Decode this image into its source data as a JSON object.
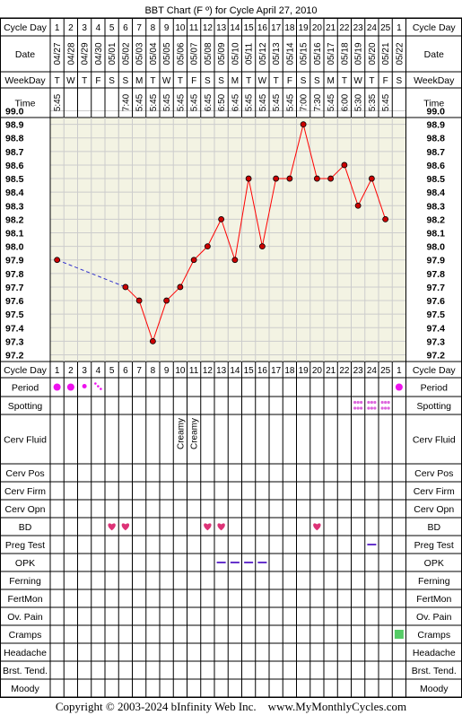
{
  "title": "BBT Chart (F º) for Cycle April 27, 2010",
  "copyright": "Copyright © 2003-2024 bInfinity Web Inc.    www.MyMonthlyCycles.com",
  "headers": {
    "cycle_day": "Cycle Day",
    "date": "Date",
    "weekday": "WeekDay",
    "time": "Time"
  },
  "cycle_days": [
    "1",
    "2",
    "3",
    "4",
    "5",
    "6",
    "7",
    "8",
    "9",
    "10",
    "11",
    "12",
    "13",
    "14",
    "15",
    "16",
    "17",
    "18",
    "19",
    "20",
    "21",
    "22",
    "23",
    "24",
    "25",
    "1"
  ],
  "dates": [
    "04/27",
    "04/28",
    "04/29",
    "04/30",
    "05/01",
    "05/02",
    "05/03",
    "05/04",
    "05/05",
    "05/06",
    "05/07",
    "05/08",
    "05/09",
    "05/10",
    "05/11",
    "05/12",
    "05/13",
    "05/14",
    "05/15",
    "05/16",
    "05/17",
    "05/18",
    "05/19",
    "05/20",
    "05/21",
    "05/22"
  ],
  "weekdays": [
    "T",
    "W",
    "T",
    "F",
    "S",
    "S",
    "M",
    "T",
    "W",
    "T",
    "F",
    "S",
    "S",
    "M",
    "T",
    "W",
    "T",
    "F",
    "S",
    "S",
    "M",
    "T",
    "W",
    "T",
    "F",
    "S"
  ],
  "times": [
    "5:45",
    "",
    "",
    "",
    "",
    "7:40",
    "5:45",
    "5:45",
    "5:45",
    "5:45",
    "5:45",
    "6:45",
    "6:50",
    "6:45",
    "5:45",
    "5:45",
    "5:45",
    "5:45",
    "7:00",
    "7:30",
    "5:45",
    "6:00",
    "5:30",
    "5:35",
    "5:45",
    ""
  ],
  "temp_labels": [
    "99.0",
    "98.9",
    "98.8",
    "98.7",
    "98.6",
    "98.5",
    "98.4",
    "98.3",
    "98.2",
    "98.1",
    "98.0",
    "97.9",
    "97.8",
    "97.7",
    "97.6",
    "97.5",
    "97.4",
    "97.3",
    "97.2"
  ],
  "chart_data": {
    "type": "line",
    "title": "BBT Chart (F º) for Cycle April 27, 2010",
    "xlabel": "Cycle Day",
    "ylabel": "",
    "ylim": [
      97.2,
      99.0
    ],
    "grid": true,
    "x": [
      1,
      2,
      3,
      4,
      5,
      6,
      7,
      8,
      9,
      10,
      11,
      12,
      13,
      14,
      15,
      16,
      17,
      18,
      19,
      20,
      21,
      22,
      23,
      24,
      25,
      26
    ],
    "temperatures": [
      97.9,
      null,
      null,
      null,
      null,
      97.7,
      97.6,
      97.3,
      97.6,
      97.7,
      97.9,
      98.0,
      98.2,
      97.9,
      98.5,
      98.0,
      98.5,
      98.5,
      98.9,
      98.5,
      98.5,
      98.6,
      98.3,
      98.5,
      98.2,
      null
    ],
    "colors": {
      "line": "#ff0000",
      "dash": "#3333cc",
      "marker": "#cc0000",
      "grid": "#cccccc",
      "plot_bg": "#f3f3e3"
    }
  },
  "rows": [
    {
      "label": "Period",
      "marks": [
        {
          "col": 0,
          "type": "dot-lg"
        },
        {
          "col": 1,
          "type": "dot-lg"
        },
        {
          "col": 2,
          "type": "dot-sm"
        },
        {
          "col": 3,
          "type": "dots-diag"
        },
        {
          "col": 25,
          "type": "dot-lg"
        }
      ]
    },
    {
      "label": "Spotting",
      "marks": [
        {
          "col": 22,
          "type": "spot"
        },
        {
          "col": 23,
          "type": "spot"
        },
        {
          "col": 24,
          "type": "spot"
        }
      ]
    },
    {
      "label": "Cerv Fluid",
      "marks": [
        {
          "col": 9,
          "type": "text",
          "text": "Creamy"
        },
        {
          "col": 10,
          "type": "text",
          "text": "Creamy"
        }
      ]
    },
    {
      "label": "Cerv Pos",
      "marks": []
    },
    {
      "label": "Cerv Firm",
      "marks": []
    },
    {
      "label": "Cerv Opn",
      "marks": []
    },
    {
      "label": "BD",
      "marks": [
        {
          "col": 4,
          "type": "heart"
        },
        {
          "col": 5,
          "type": "heart"
        },
        {
          "col": 11,
          "type": "heart"
        },
        {
          "col": 12,
          "type": "heart"
        },
        {
          "col": 19,
          "type": "heart"
        }
      ]
    },
    {
      "label": "Preg Test",
      "marks": [
        {
          "col": 23,
          "type": "dash"
        }
      ]
    },
    {
      "label": "OPK",
      "marks": [
        {
          "col": 12,
          "type": "dash"
        },
        {
          "col": 13,
          "type": "dash"
        },
        {
          "col": 14,
          "type": "dash"
        },
        {
          "col": 15,
          "type": "dash"
        }
      ]
    },
    {
      "label": "Ferning",
      "marks": []
    },
    {
      "label": "FertMon",
      "marks": []
    },
    {
      "label": "Ov. Pain",
      "marks": []
    },
    {
      "label": "Cramps",
      "marks": [
        {
          "col": 25,
          "type": "square"
        }
      ]
    },
    {
      "label": "Headache",
      "marks": []
    },
    {
      "label": "Brst. Tend.",
      "marks": []
    },
    {
      "label": "Moody",
      "marks": []
    }
  ]
}
